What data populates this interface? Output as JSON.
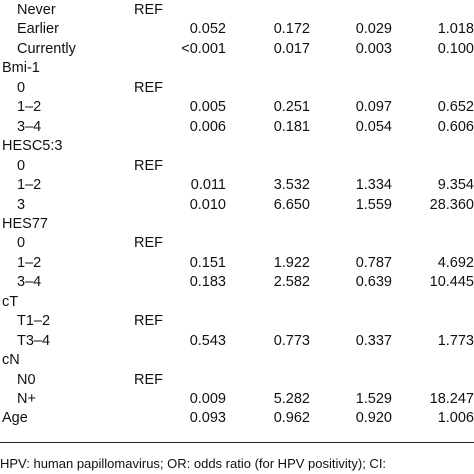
{
  "table": {
    "rows": [
      {
        "label": "Never",
        "indent": true,
        "cells": [
          "REF"
        ]
      },
      {
        "label": "Earlier",
        "indent": true,
        "cells": [
          "0.052",
          "0.172",
          "0.029",
          "1.018"
        ]
      },
      {
        "label": "Currently",
        "indent": true,
        "cells": [
          "<0.001",
          "0.017",
          "0.003",
          "0.100"
        ]
      },
      {
        "label": "Bmi-1",
        "indent": false,
        "cells": []
      },
      {
        "label": "0",
        "indent": true,
        "cells": [
          "REF"
        ]
      },
      {
        "label": "1–2",
        "indent": true,
        "cells": [
          "0.005",
          "0.251",
          "0.097",
          "0.652"
        ]
      },
      {
        "label": "3–4",
        "indent": true,
        "cells": [
          "0.006",
          "0.181",
          "0.054",
          "0.606"
        ]
      },
      {
        "label": "HESC5:3",
        "indent": false,
        "cells": []
      },
      {
        "label": "0",
        "indent": true,
        "cells": [
          "REF"
        ]
      },
      {
        "label": "1–2",
        "indent": true,
        "cells": [
          "0.011",
          "3.532",
          "1.334",
          "9.354"
        ]
      },
      {
        "label": "3",
        "indent": true,
        "cells": [
          "0.010",
          "6.650",
          "1.559",
          "28.360"
        ]
      },
      {
        "label": "HES77",
        "indent": false,
        "cells": []
      },
      {
        "label": "0",
        "indent": true,
        "cells": [
          "REF"
        ]
      },
      {
        "label": "1–2",
        "indent": true,
        "cells": [
          "0.151",
          "1.922",
          "0.787",
          "4.692"
        ]
      },
      {
        "label": "3–4",
        "indent": true,
        "cells": [
          "0.183",
          "2.582",
          "0.639",
          "10.445"
        ]
      },
      {
        "label": "cT",
        "indent": false,
        "cells": []
      },
      {
        "label": "T1–2",
        "indent": true,
        "cells": [
          "REF"
        ]
      },
      {
        "label": "T3–4",
        "indent": true,
        "cells": [
          "0.543",
          "0.773",
          "0.337",
          "1.773"
        ]
      },
      {
        "label": "cN",
        "indent": false,
        "cells": []
      },
      {
        "label": "N0",
        "indent": true,
        "cells": [
          "REF"
        ]
      },
      {
        "label": "N+",
        "indent": true,
        "cells": [
          "0.009",
          "5.282",
          "1.529",
          "18.247"
        ]
      },
      {
        "label": "Age",
        "indent": false,
        "cells": [
          "0.093",
          "0.962",
          "0.920",
          "1.006"
        ]
      }
    ],
    "footnote": "HPV: human papillomavirus; OR: odds ratio (for HPV positivity); CI:"
  }
}
